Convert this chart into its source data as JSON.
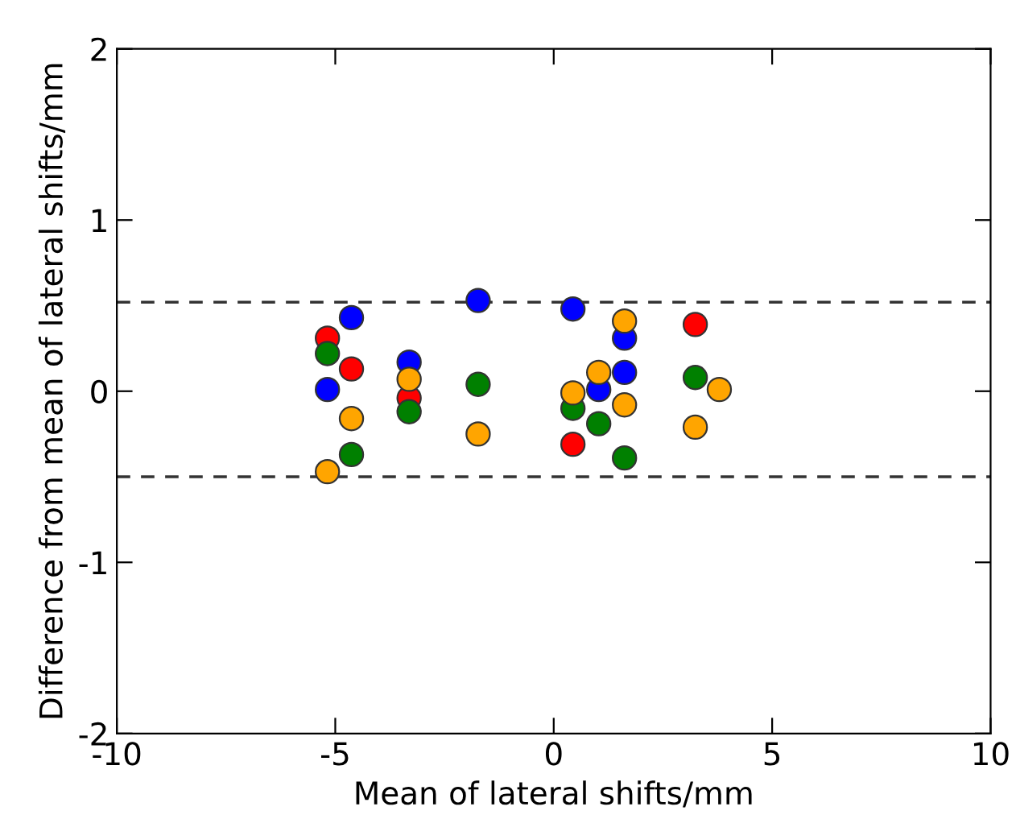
{
  "chart_data": {
    "type": "scatter",
    "xlabel": "Mean of lateral shifts/mm",
    "ylabel": "Difference from mean of lateral shifts/mm",
    "xlim": [
      -10,
      10
    ],
    "ylim": [
      -2,
      2
    ],
    "xticks": [
      -10,
      -5,
      0,
      5,
      10
    ],
    "yticks": [
      -2,
      -1,
      0,
      1,
      2
    ],
    "grid": false,
    "legend": false,
    "marker": "circle",
    "series": [
      {
        "color": "#ff0000",
        "x": [
          -5.18,
          -4.63,
          -3.31,
          0.44,
          3.24
        ],
        "values": [
          0.31,
          0.13,
          -0.04,
          -0.31,
          0.39
        ]
      },
      {
        "color": "#0000ff",
        "x": [
          -5.18,
          -4.63,
          -3.31,
          -1.73,
          0.44,
          1.03,
          1.62,
          1.62
        ],
        "values": [
          0.01,
          0.43,
          0.17,
          0.53,
          0.48,
          0.01,
          0.31,
          0.11
        ]
      },
      {
        "color": "#008000",
        "x": [
          -5.18,
          -4.63,
          -3.31,
          -1.73,
          0.44,
          1.03,
          1.62,
          3.24
        ],
        "values": [
          0.22,
          -0.37,
          -0.12,
          0.04,
          -0.1,
          -0.19,
          -0.39,
          0.08
        ]
      },
      {
        "color": "#ffa500",
        "x": [
          -5.18,
          -4.63,
          -3.31,
          -1.73,
          0.44,
          1.03,
          1.62,
          1.62,
          3.24,
          3.79
        ],
        "values": [
          -0.47,
          -0.16,
          0.07,
          -0.25,
          -0.01,
          0.11,
          0.41,
          -0.08,
          -0.21,
          0.01
        ]
      }
    ],
    "ref_lines": [
      {
        "axis": "y",
        "value": 0.52,
        "line_style": "dashed"
      },
      {
        "axis": "y",
        "value": -0.5,
        "line_style": "dashed"
      }
    ]
  }
}
